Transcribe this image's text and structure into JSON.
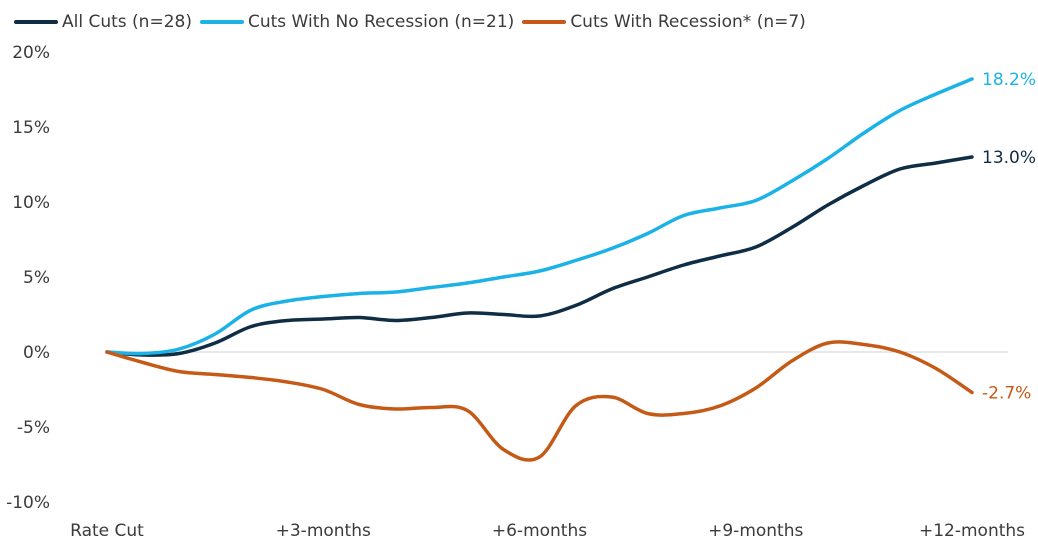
{
  "chart_data": {
    "type": "line",
    "title": "",
    "xlabel": "",
    "ylabel": "",
    "legend_position": "top-left",
    "grid": false,
    "ylim": [
      -10,
      20
    ],
    "y_ticks": [
      20,
      15,
      10,
      5,
      0,
      -5,
      -10
    ],
    "y_tick_labels": [
      "20%",
      "15%",
      "10%",
      "5%",
      "0%",
      "-5%",
      "-10%"
    ],
    "x_range": [
      0,
      12
    ],
    "x_ticks": [
      0,
      3,
      6,
      9,
      12
    ],
    "x_tick_labels": [
      "Rate Cut",
      "+3-months",
      "+6-months",
      "+9-months",
      "+12-months"
    ],
    "series": [
      {
        "name": "All Cuts (n=28)",
        "color": "#0f2d44",
        "end_label": "13.0%",
        "x": [
          0,
          0.5,
          1,
          1.5,
          2,
          2.5,
          3,
          3.5,
          4,
          4.5,
          5,
          5.5,
          6,
          6.5,
          7,
          7.5,
          8,
          8.5,
          9,
          9.5,
          10,
          10.5,
          11,
          11.5,
          12
        ],
        "y": [
          0,
          -0.2,
          -0.1,
          0.6,
          1.7,
          2.1,
          2.2,
          2.3,
          2.1,
          2.3,
          2.6,
          2.5,
          2.4,
          3.1,
          4.2,
          5.0,
          5.8,
          6.4,
          7.0,
          8.3,
          9.8,
          11.1,
          12.2,
          12.6,
          13.0
        ]
      },
      {
        "name": "Cuts With No Recession (n=21)",
        "color": "#1bb2e8",
        "end_label": "18.2%",
        "x": [
          0,
          0.5,
          1,
          1.5,
          2,
          2.5,
          3,
          3.5,
          4,
          4.5,
          5,
          5.5,
          6,
          6.5,
          7,
          7.5,
          8,
          8.5,
          9,
          9.5,
          10,
          10.5,
          11,
          11.5,
          12
        ],
        "y": [
          0,
          -0.1,
          0.2,
          1.2,
          2.8,
          3.4,
          3.7,
          3.9,
          4.0,
          4.3,
          4.6,
          5.0,
          5.4,
          6.1,
          6.9,
          7.9,
          9.1,
          9.6,
          10.1,
          11.4,
          12.9,
          14.6,
          16.1,
          17.2,
          18.2
        ]
      },
      {
        "name": "Cuts With Recession* (n=7)",
        "color": "#c55a17",
        "end_label": "-2.7%",
        "x": [
          0,
          0.5,
          1,
          1.5,
          2,
          2.5,
          3,
          3.5,
          4,
          4.5,
          5,
          5.5,
          6,
          6.5,
          7,
          7.5,
          8,
          8.5,
          9,
          9.5,
          10,
          10.5,
          11,
          11.5,
          12
        ],
        "y": [
          0,
          -0.7,
          -1.3,
          -1.5,
          -1.7,
          -2.0,
          -2.5,
          -3.5,
          -3.8,
          -3.7,
          -3.9,
          -6.5,
          -7.0,
          -3.6,
          -3.0,
          -4.1,
          -4.1,
          -3.6,
          -2.4,
          -0.6,
          0.6,
          0.5,
          0.0,
          -1.1,
          -2.7
        ]
      }
    ]
  }
}
